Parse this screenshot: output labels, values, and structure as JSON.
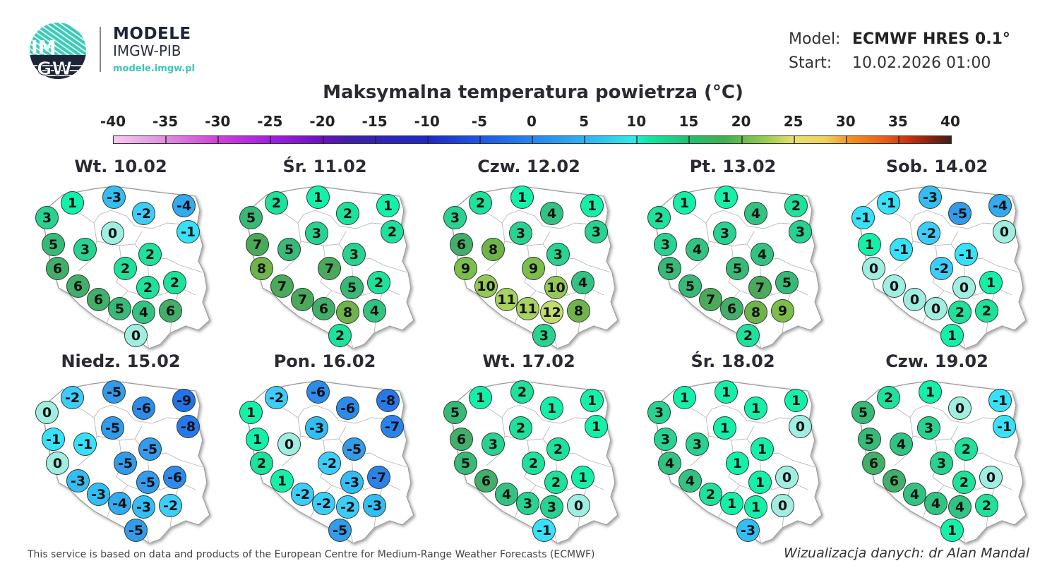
{
  "header": {
    "logo_text_top": "IM",
    "logo_text_bottom": "GW",
    "brand_title": "MODELE",
    "brand_subtitle": "IMGW-PIB",
    "brand_url": "modele.imgw.pl",
    "model_label": "Model:",
    "model_value": "ECMWF HRES 0.1°",
    "start_label": "Start:",
    "start_value": "10.02.2026 01:00"
  },
  "title": "Maksymalna temperatura powietrza (°C)",
  "colorbar": {
    "labels": [
      "-40",
      "-35",
      "-30",
      "-25",
      "-20",
      "-15",
      "-10",
      "-5",
      "0",
      "5",
      "10",
      "15",
      "20",
      "25",
      "30",
      "35",
      "40"
    ],
    "min": -40,
    "max": 40
  },
  "city_positions": [
    [
      62,
      30
    ],
    [
      121,
      22
    ],
    [
      26,
      51
    ],
    [
      163,
      45
    ],
    [
      220,
      34
    ],
    [
      119,
      73
    ],
    [
      226,
      71
    ],
    [
      35,
      89
    ],
    [
      80,
      96
    ],
    [
      172,
      103
    ],
    [
      137,
      123
    ],
    [
      41,
      123
    ],
    [
      70,
      148
    ],
    [
      169,
      150
    ],
    [
      207,
      143
    ],
    [
      99,
      167
    ],
    [
      129,
      180
    ],
    [
      163,
      185
    ],
    [
      201,
      183
    ],
    [
      152,
      218
    ]
  ],
  "days": [
    {
      "label": "Wt. 10.02",
      "values": [
        1,
        -3,
        3,
        -2,
        -4,
        0,
        -1,
        5,
        3,
        2,
        2,
        6,
        6,
        2,
        2,
        6,
        5,
        4,
        6,
        0
      ]
    },
    {
      "label": "Śr. 11.02",
      "values": [
        2,
        1,
        5,
        2,
        1,
        3,
        2,
        7,
        5,
        3,
        7,
        8,
        7,
        5,
        2,
        7,
        6,
        8,
        4,
        2
      ]
    },
    {
      "label": "Czw. 12.02",
      "values": [
        2,
        1,
        3,
        4,
        1,
        3,
        3,
        6,
        8,
        3,
        9,
        9,
        10,
        10,
        4,
        11,
        11,
        12,
        8,
        3
      ]
    },
    {
      "label": "Pt. 13.02",
      "values": [
        1,
        1,
        2,
        4,
        2,
        3,
        3,
        3,
        4,
        4,
        5,
        5,
        5,
        7,
        5,
        7,
        6,
        8,
        9,
        2
      ]
    },
    {
      "label": "Sob. 14.02",
      "values": [
        -1,
        -3,
        -1,
        -5,
        -4,
        -2,
        0,
        1,
        -1,
        -1,
        -2,
        0,
        0,
        0,
        1,
        0,
        0,
        2,
        2,
        1
      ]
    },
    {
      "label": "Niedz. 15.02",
      "values": [
        -2,
        -5,
        0,
        -6,
        -9,
        -5,
        -8,
        -1,
        -1,
        -5,
        -5,
        0,
        -3,
        -5,
        -6,
        -3,
        -4,
        -3,
        -2,
        -5
      ]
    },
    {
      "label": "Pon. 16.02",
      "values": [
        -2,
        -6,
        1,
        -6,
        -8,
        -3,
        -7,
        1,
        0,
        -5,
        -2,
        2,
        1,
        -3,
        -7,
        -2,
        -2,
        -2,
        -3,
        -5
      ]
    },
    {
      "label": "Wt. 17.02",
      "values": [
        1,
        2,
        5,
        1,
        1,
        2,
        1,
        6,
        3,
        2,
        2,
        5,
        6,
        2,
        1,
        4,
        3,
        3,
        0,
        -1
      ]
    },
    {
      "label": "Śr. 18.02",
      "values": [
        1,
        1,
        3,
        1,
        1,
        1,
        0,
        3,
        3,
        1,
        1,
        4,
        4,
        1,
        0,
        2,
        1,
        1,
        0,
        -3
      ]
    },
    {
      "label": "Czw. 19.02",
      "values": [
        2,
        1,
        5,
        0,
        -1,
        3,
        -1,
        5,
        4,
        2,
        3,
        6,
        6,
        2,
        0,
        4,
        4,
        4,
        2,
        1
      ]
    }
  ],
  "footer": {
    "attribution": "This service is based on data and products of the European Centre for Medium-Range Weather Forecasts (ECMWF)",
    "credit": "Wizualizacja danych: dr Alan Mandal"
  },
  "colors": {
    "brand_teal": "#3cc8b4",
    "brand_navy": "#1e2438"
  }
}
